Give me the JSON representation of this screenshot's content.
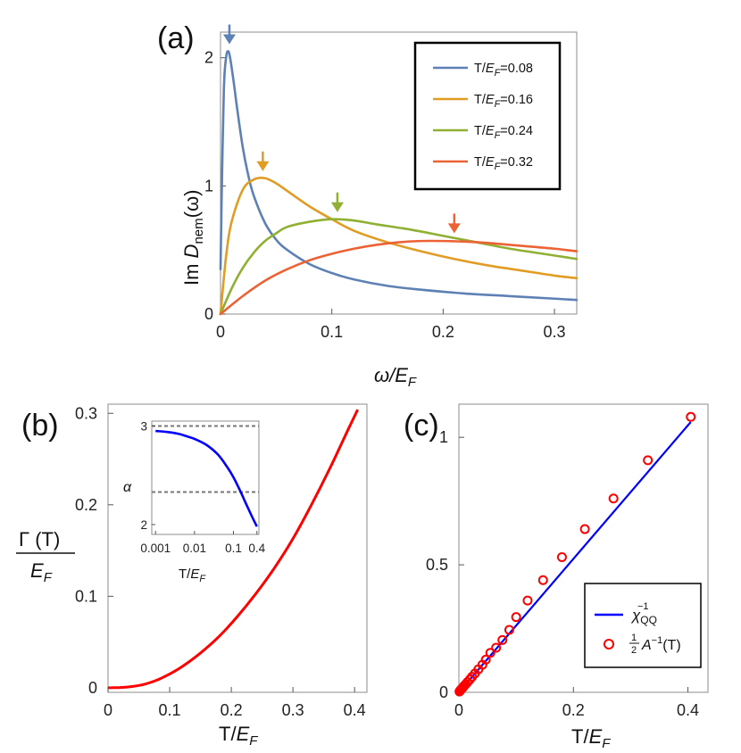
{
  "chart_data": [
    {
      "id": "a",
      "panel_label": "(a)",
      "type": "line",
      "ylabel": "Im D_nem(ω)",
      "ylabel_parts": {
        "prefix": "Im ",
        "symbol": "D",
        "subscript": "nem",
        "suffix": "(ω)"
      },
      "xlabel": "ω/E_F",
      "xlabel_parts": {
        "symbol": "ω/E",
        "subscript": "F"
      },
      "xlim": [
        0,
        0.32
      ],
      "ylim": [
        0,
        2.2
      ],
      "xticks": [
        0,
        0.1,
        0.2,
        0.3
      ],
      "xtick_labels": [
        "0",
        "0.1",
        "0.2",
        "0.3"
      ],
      "yticks": [
        0,
        1,
        2
      ],
      "ytick_labels": [
        "0",
        "1",
        "2"
      ],
      "legend_position": "top-right",
      "series": [
        {
          "name": "T/E_F=0.08",
          "label_prefix": "T/",
          "label_symbol": "E",
          "label_sub": "F",
          "label_suffix": "=0.08",
          "color": "#5e81b5",
          "x": [
            0,
            0.001,
            0.003,
            0.005,
            0.007,
            0.009,
            0.012,
            0.015,
            0.02,
            0.025,
            0.03,
            0.04,
            0.05,
            0.06,
            0.08,
            0.1,
            0.12,
            0.15,
            0.18,
            0.22,
            0.26,
            0.3,
            0.32
          ],
          "y": [
            0.35,
            0.9,
            1.75,
            2.0,
            2.05,
            1.98,
            1.8,
            1.6,
            1.3,
            1.08,
            0.92,
            0.71,
            0.58,
            0.5,
            0.39,
            0.32,
            0.27,
            0.22,
            0.19,
            0.16,
            0.14,
            0.12,
            0.11
          ],
          "peak": [
            0.008,
            2.05
          ]
        },
        {
          "name": "T/E_F=0.16",
          "label_prefix": "T/",
          "label_symbol": "E",
          "label_sub": "F",
          "label_suffix": "=0.16",
          "color": "#e19c24",
          "x": [
            0,
            0.005,
            0.01,
            0.02,
            0.03,
            0.04,
            0.05,
            0.06,
            0.08,
            0.1,
            0.12,
            0.15,
            0.18,
            0.21,
            0.24,
            0.27,
            0.3,
            0.32
          ],
          "y": [
            0,
            0.45,
            0.72,
            0.97,
            1.05,
            1.06,
            1.02,
            0.96,
            0.84,
            0.74,
            0.65,
            0.56,
            0.49,
            0.43,
            0.38,
            0.34,
            0.3,
            0.28
          ],
          "peak": [
            0.038,
            1.06
          ]
        },
        {
          "name": "T/E_F=0.24",
          "label_prefix": "T/",
          "label_symbol": "E",
          "label_sub": "F",
          "label_suffix": "=0.24",
          "color": "#8fb032",
          "x": [
            0,
            0.01,
            0.02,
            0.03,
            0.04,
            0.05,
            0.06,
            0.08,
            0.1,
            0.12,
            0.14,
            0.17,
            0.2,
            0.23,
            0.26,
            0.29,
            0.32
          ],
          "y": [
            0,
            0.2,
            0.36,
            0.48,
            0.57,
            0.63,
            0.68,
            0.72,
            0.74,
            0.73,
            0.7,
            0.66,
            0.61,
            0.56,
            0.51,
            0.47,
            0.43
          ],
          "peak": [
            0.105,
            0.74
          ]
        },
        {
          "name": "T/E_F=0.32",
          "label_prefix": "T/",
          "label_symbol": "E",
          "label_sub": "F",
          "label_suffix": "=0.32",
          "color": "#eb6235",
          "x": [
            0,
            0.02,
            0.04,
            0.06,
            0.08,
            0.1,
            0.12,
            0.14,
            0.16,
            0.18,
            0.2,
            0.22,
            0.24,
            0.26,
            0.28,
            0.3,
            0.32
          ],
          "y": [
            0,
            0.14,
            0.26,
            0.35,
            0.42,
            0.47,
            0.51,
            0.54,
            0.56,
            0.57,
            0.57,
            0.565,
            0.555,
            0.54,
            0.525,
            0.51,
            0.49
          ],
          "peak": [
            0.21,
            0.575
          ]
        }
      ]
    },
    {
      "id": "b",
      "panel_label": "(b)",
      "type": "line",
      "ylabel": "Γ(T)/E_F",
      "ylabel_parts": {
        "num": "Γ (T)",
        "den_symbol": "E",
        "den_sub": "F"
      },
      "xlabel": "T/E_F",
      "xlabel_parts": {
        "prefix": "T/",
        "symbol": "E",
        "subscript": "F"
      },
      "xlim": [
        0,
        0.42
      ],
      "ylim": [
        -0.005,
        0.31
      ],
      "xticks": [
        0,
        0.1,
        0.2,
        0.3,
        0.4
      ],
      "xtick_labels": [
        "0",
        "0.1",
        "0.2",
        "0.3",
        "0.4"
      ],
      "yticks": [
        0,
        0.1,
        0.2,
        0.3
      ],
      "ytick_labels": [
        "0",
        "0.1",
        "0.2",
        "0.3"
      ],
      "series": [
        {
          "name": "Γ(T)/E_F",
          "color": "#ff0000",
          "x": [
            0,
            0.02,
            0.04,
            0.06,
            0.08,
            0.1,
            0.12,
            0.15,
            0.18,
            0.21,
            0.24,
            0.27,
            0.3,
            0.33,
            0.36,
            0.39,
            0.405
          ],
          "y": [
            0,
            0.0003,
            0.0015,
            0.004,
            0.0085,
            0.015,
            0.023,
            0.038,
            0.056,
            0.078,
            0.103,
            0.131,
            0.163,
            0.2,
            0.24,
            0.283,
            0.304
          ]
        }
      ],
      "inset": {
        "type": "line",
        "ylabel": "α",
        "xlabel": "T/E_F",
        "xlabel_parts": {
          "prefix": "T/",
          "symbol": "E",
          "subscript": "F"
        },
        "xscale": "log",
        "xlim": [
          0.0008,
          0.45
        ],
        "ylim": [
          1.9,
          3.05
        ],
        "xticks": [
          0.001,
          0.01,
          0.1,
          0.4
        ],
        "xtick_labels": [
          "0.001",
          "0.01",
          "0.1",
          "0.4"
        ],
        "yticks": [
          2,
          3
        ],
        "ytick_labels": [
          "2",
          "3"
        ],
        "reference_lines": [
          3.0,
          2.33
        ],
        "series": [
          {
            "name": "α",
            "color": "#0000ff",
            "x": [
              0.001,
              0.002,
              0.004,
              0.007,
              0.01,
              0.02,
              0.04,
              0.07,
              0.1,
              0.15,
              0.2,
              0.3,
              0.4
            ],
            "y": [
              2.95,
              2.94,
              2.92,
              2.89,
              2.87,
              2.81,
              2.71,
              2.58,
              2.48,
              2.34,
              2.23,
              2.08,
              1.98
            ]
          }
        ]
      }
    },
    {
      "id": "c",
      "panel_label": "(c)",
      "type": "line",
      "xlabel": "T/E_F",
      "xlabel_parts": {
        "prefix": "T/",
        "symbol": "E",
        "subscript": "F"
      },
      "xlim": [
        0,
        0.435
      ],
      "ylim": [
        0,
        1.13
      ],
      "xticks": [
        0,
        0.2,
        0.4
      ],
      "xtick_labels": [
        "0",
        "0.2",
        "0.4"
      ],
      "yticks": [
        0,
        0.5,
        1
      ],
      "ytick_labels": [
        "0",
        "0.5",
        "1"
      ],
      "legend_position": "bottom-right",
      "series": [
        {
          "name": "χ_QQ^-1",
          "legend_symbol": "χ",
          "legend_sub": "QQ",
          "legend_sup": "−1",
          "color": "#0000ff",
          "x": [
            0,
            0.405
          ],
          "y": [
            0,
            1.06
          ]
        },
        {
          "name": "½A^-1(T)",
          "legend_num": "1",
          "legend_den": "2",
          "legend_symbol": "A",
          "legend_sup": "−1",
          "legend_suffix": "(T)",
          "color": "#ff0000",
          "marker": "circle-open",
          "x": [
            0.001,
            0.002,
            0.003,
            0.005,
            0.007,
            0.009,
            0.012,
            0.015,
            0.019,
            0.023,
            0.028,
            0.034,
            0.041,
            0.047,
            0.055,
            0.065,
            0.076,
            0.088,
            0.1,
            0.12,
            0.147,
            0.18,
            0.22,
            0.27,
            0.33,
            0.405
          ],
          "y": [
            0.003,
            0.006,
            0.009,
            0.014,
            0.019,
            0.025,
            0.032,
            0.04,
            0.05,
            0.061,
            0.074,
            0.09,
            0.108,
            0.128,
            0.155,
            0.175,
            0.205,
            0.245,
            0.295,
            0.36,
            0.44,
            0.53,
            0.64,
            0.76,
            0.91,
            1.08
          ]
        }
      ]
    }
  ]
}
